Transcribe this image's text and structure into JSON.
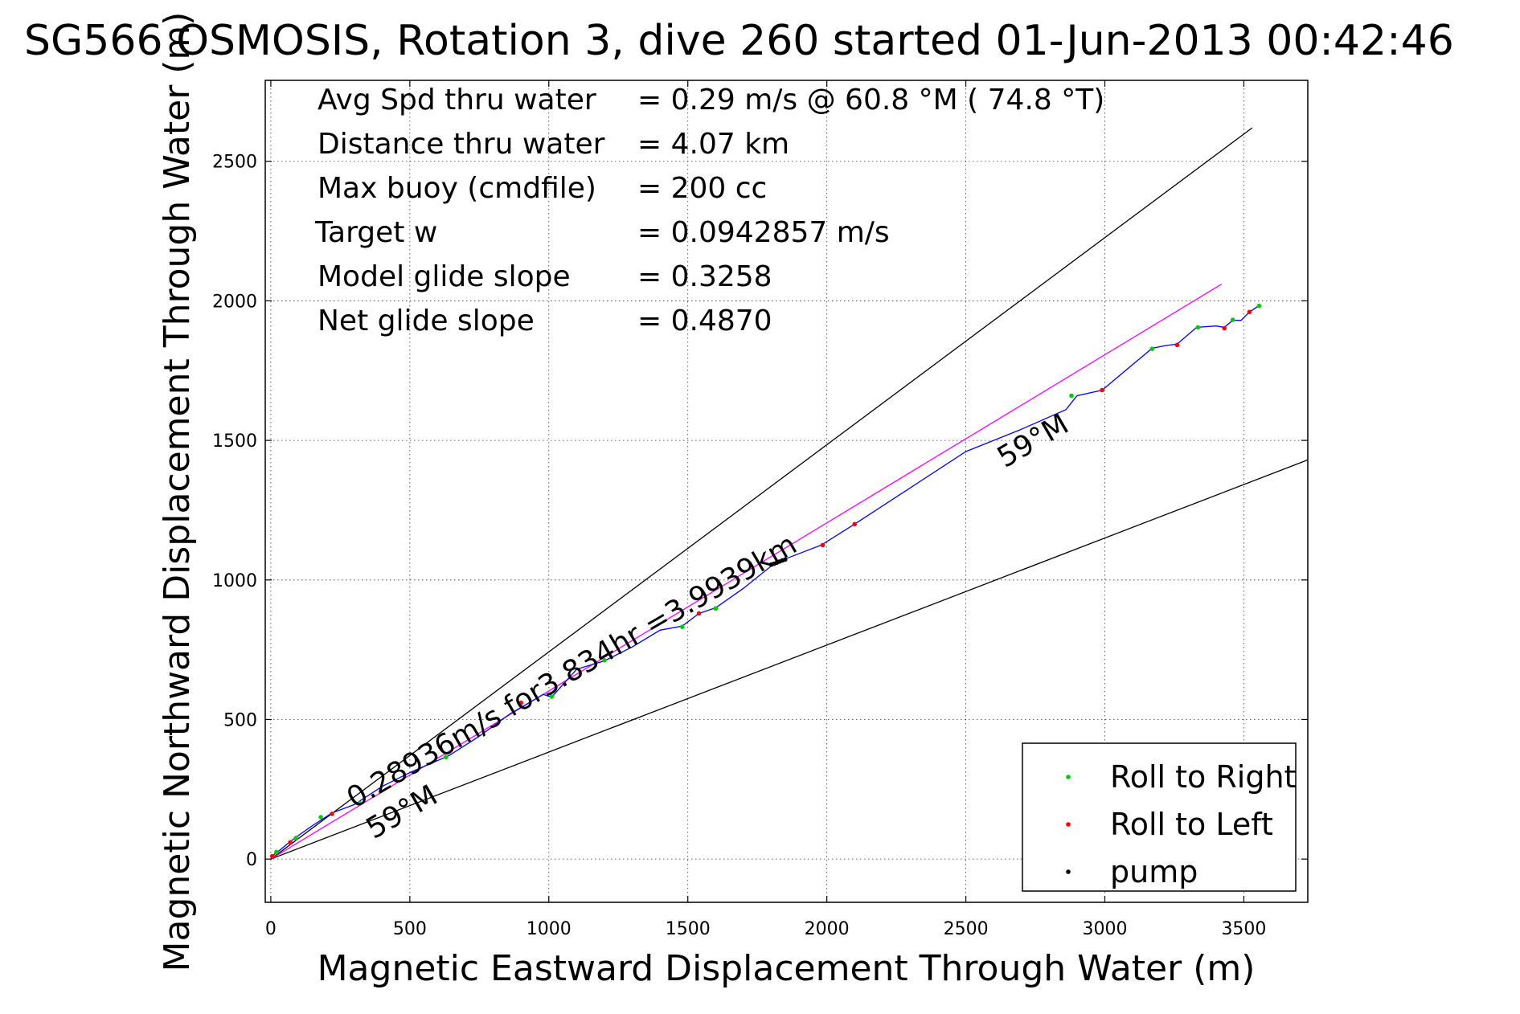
{
  "chart_data": {
    "type": "line",
    "title": "SG566 OSMOSIS, Rotation 3, dive 260 started 01-Jun-2013 00:42:46",
    "xlabel": "Magnetic Eastward Displacement Through Water (m)",
    "ylabel": "Magnetic Northward Displacement Through Water (m)",
    "xlim": [
      -20,
      3730
    ],
    "ylim": [
      -155,
      2790
    ],
    "xticks": [
      0,
      500,
      1000,
      1500,
      2000,
      2500,
      3000,
      3500
    ],
    "yticks": [
      0,
      500,
      1000,
      1500,
      2000,
      2500
    ],
    "grid": true,
    "info_lines": [
      {
        "label": "Avg Spd thru water",
        "value": "=  0.29 m/s @  60.8 °M ( 74.8 °T)"
      },
      {
        "label": "Distance thru water",
        "value": "=  4.07 km"
      },
      {
        "label": "Max buoy (cmdfile)",
        "value": "= 200 cc"
      },
      {
        "label": "Target w",
        "value": "= 0.0942857 m/s"
      },
      {
        "label": "Model glide slope",
        "value": "= 0.3258"
      },
      {
        "label": "Net glide slope",
        "value": "= 0.4870"
      }
    ],
    "annotations": [
      {
        "text": "0.28936m/s for3.834hr =3.9939km",
        "x": 300,
        "y": 180,
        "angle": 30.2
      },
      {
        "text": "59°M",
        "x": 370,
        "y": 70,
        "angle": 30.2
      },
      {
        "text": "59°M",
        "x": 2640,
        "y": 1400,
        "angle": 30.2
      }
    ],
    "reference_lines": [
      {
        "name": "bounds-upper",
        "color": "#000000",
        "points": [
          [
            0,
            0
          ],
          [
            3530,
            2620
          ]
        ]
      },
      {
        "name": "bounds-lower",
        "color": "#000000",
        "points": [
          [
            0,
            0
          ],
          [
            3730,
            1430
          ]
        ]
      },
      {
        "name": "course",
        "color": "#ff00ff",
        "points": [
          [
            0,
            0
          ],
          [
            3420,
            2060
          ]
        ]
      }
    ],
    "series": [
      {
        "name": "",
        "color": "#0000ff",
        "points": [
          [
            0,
            0
          ],
          [
            10,
            15
          ],
          [
            30,
            30
          ],
          [
            60,
            55
          ],
          [
            100,
            85
          ],
          [
            150,
            120
          ],
          [
            220,
            165
          ],
          [
            300,
            195
          ],
          [
            400,
            260
          ],
          [
            500,
            310
          ],
          [
            640,
            370
          ],
          [
            750,
            440
          ],
          [
            860,
            520
          ],
          [
            980,
            590
          ],
          [
            1010,
            580
          ],
          [
            1100,
            680
          ],
          [
            1200,
            710
          ],
          [
            1300,
            760
          ],
          [
            1400,
            820
          ],
          [
            1480,
            835
          ],
          [
            1540,
            880
          ],
          [
            1600,
            900
          ],
          [
            1700,
            970
          ],
          [
            1800,
            1050
          ],
          [
            1850,
            1075
          ],
          [
            1980,
            1125
          ],
          [
            2100,
            1200
          ],
          [
            2300,
            1330
          ],
          [
            2500,
            1460
          ],
          [
            2700,
            1540
          ],
          [
            2860,
            1610
          ],
          [
            2900,
            1660
          ],
          [
            2990,
            1680
          ],
          [
            3050,
            1730
          ],
          [
            3170,
            1830
          ],
          [
            3220,
            1840
          ],
          [
            3260,
            1845
          ],
          [
            3330,
            1905
          ],
          [
            3400,
            1910
          ],
          [
            3430,
            1905
          ],
          [
            3460,
            1930
          ],
          [
            3490,
            1930
          ],
          [
            3520,
            1960
          ],
          [
            3550,
            1980
          ]
        ]
      }
    ],
    "markers": {
      "Roll to Right": {
        "color": "#00cc00",
        "points": [
          [
            20,
            25
          ],
          [
            90,
            75
          ],
          [
            180,
            150
          ],
          [
            320,
            200
          ],
          [
            630,
            365
          ],
          [
            1010,
            582
          ],
          [
            1200,
            712
          ],
          [
            1480,
            832
          ],
          [
            1600,
            898
          ],
          [
            2880,
            1660
          ],
          [
            3170,
            1828
          ],
          [
            3335,
            1905
          ],
          [
            3460,
            1932
          ],
          [
            3555,
            1982
          ]
        ]
      },
      "Roll to Left": {
        "color": "#ff0000",
        "points": [
          [
            5,
            10
          ],
          [
            70,
            60
          ],
          [
            220,
            162
          ],
          [
            900,
            560
          ],
          [
            1540,
            880
          ],
          [
            1985,
            1125
          ],
          [
            2100,
            1200
          ],
          [
            2990,
            1680
          ],
          [
            3260,
            1842
          ],
          [
            3430,
            1902
          ],
          [
            3520,
            1960
          ]
        ]
      },
      "pump": {
        "color": "#000000",
        "points": [
          [
            1800,
            1055
          ],
          [
            1810,
            1058
          ],
          [
            1820,
            1062
          ],
          [
            1830,
            1066
          ],
          [
            1840,
            1070
          ],
          [
            1850,
            1073
          ]
        ]
      }
    },
    "legend": {
      "placement": "bottom-right",
      "entries": [
        "Roll to Right",
        "Roll to Left",
        "pump"
      ]
    }
  }
}
